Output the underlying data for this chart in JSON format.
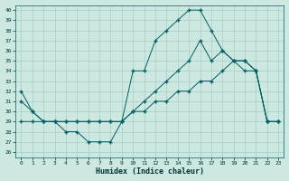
{
  "xlabel": "Humidex (Indice chaleur)",
  "bg_color": "#cce8e0",
  "line_color": "#006060",
  "grid_color": "#aacccc",
  "xlim": [
    -0.5,
    23.5
  ],
  "ylim": [
    25.5,
    40.5
  ],
  "xticks": [
    0,
    1,
    2,
    3,
    4,
    5,
    6,
    7,
    8,
    9,
    10,
    11,
    12,
    13,
    14,
    15,
    16,
    17,
    18,
    19,
    20,
    21,
    22,
    23
  ],
  "yticks": [
    26,
    27,
    28,
    29,
    30,
    31,
    32,
    33,
    34,
    35,
    36,
    37,
    38,
    39,
    40
  ],
  "line1_x": [
    0,
    1,
    2,
    3,
    4,
    5,
    6,
    7,
    8,
    9,
    10,
    11,
    12,
    13,
    14,
    15,
    16,
    17,
    18,
    19,
    20,
    21,
    22,
    23
  ],
  "line1_y": [
    32,
    30,
    29,
    29,
    28,
    28,
    27,
    27,
    27,
    29,
    34,
    34,
    37,
    38,
    39,
    40,
    40,
    38,
    36,
    35,
    34,
    34,
    29,
    29
  ],
  "line2_x": [
    0,
    1,
    2,
    3,
    4,
    5,
    6,
    7,
    8,
    9,
    10,
    11,
    12,
    13,
    14,
    15,
    16,
    17,
    18,
    19,
    20,
    21,
    22,
    23
  ],
  "line2_y": [
    29,
    29,
    29,
    29,
    29,
    29,
    29,
    29,
    29,
    29,
    30,
    30,
    31,
    31,
    32,
    32,
    33,
    33,
    34,
    35,
    35,
    34,
    29,
    29
  ],
  "line3_x": [
    0,
    1,
    2,
    3,
    4,
    5,
    6,
    7,
    8,
    9,
    10,
    11,
    12,
    13,
    14,
    15,
    16,
    17,
    18,
    19,
    20,
    21,
    22,
    23
  ],
  "line3_y": [
    31,
    30,
    29,
    29,
    29,
    29,
    29,
    29,
    29,
    29,
    30,
    31,
    32,
    33,
    34,
    35,
    37,
    35,
    36,
    35,
    35,
    34,
    29,
    29
  ],
  "marker": "+"
}
